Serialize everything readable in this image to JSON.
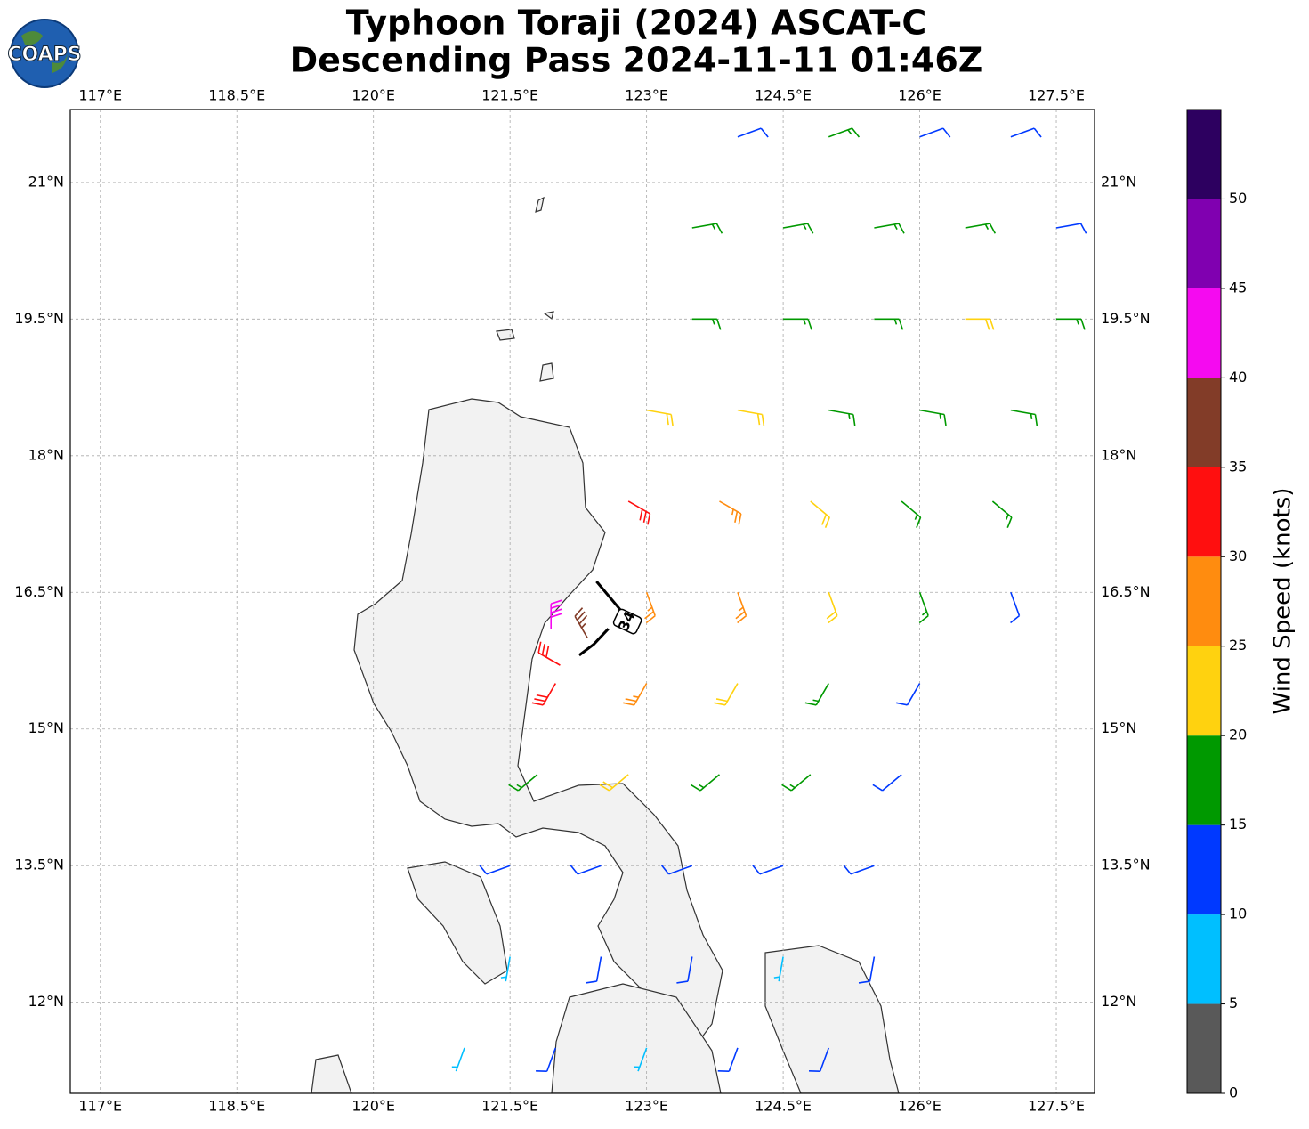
{
  "chart_data": {
    "type": "map",
    "logo": "COAPS",
    "title": [
      "Typhoon Toraji (2024) ASCAT-C",
      "Descending Pass 2024-11-11 01:46Z"
    ],
    "xlim": [
      116.67,
      127.92
    ],
    "ylim": [
      11,
      21.8
    ],
    "xticks": [
      {
        "value": 117,
        "label": "117°E"
      },
      {
        "value": 118.5,
        "label": "118.5°E"
      },
      {
        "value": 120,
        "label": "120°E"
      },
      {
        "value": 121.5,
        "label": "121.5°E"
      },
      {
        "value": 123,
        "label": "123°E"
      },
      {
        "value": 124.5,
        "label": "124.5°E"
      },
      {
        "value": 126,
        "label": "126°E"
      },
      {
        "value": 127.5,
        "label": "127.5°E"
      }
    ],
    "yticks": [
      {
        "value": 12,
        "label": "12°N"
      },
      {
        "value": 13.5,
        "label": "13.5°N"
      },
      {
        "value": 15,
        "label": "15°N"
      },
      {
        "value": 16.5,
        "label": "16.5°N"
      },
      {
        "value": 18,
        "label": "18°N"
      },
      {
        "value": 19.5,
        "label": "19.5°N"
      },
      {
        "value": 21,
        "label": "21°N"
      }
    ],
    "grid": true,
    "colorbar": {
      "label": "Wind Speed (knots)",
      "levels": [
        0,
        5,
        10,
        15,
        20,
        25,
        30,
        35,
        40,
        45,
        50,
        55
      ],
      "colors": [
        "#595959",
        "#00bfff",
        "#0039ff",
        "#009900",
        "#ffd20f",
        "#ff8c0f",
        "#ff0f0f",
        "#823c28",
        "#f50af0",
        "#8000b0",
        "#2d0060"
      ],
      "ticks": [
        0,
        5,
        10,
        15,
        20,
        25,
        30,
        35,
        40,
        45,
        50
      ]
    },
    "isotach": {
      "level": 34,
      "label_at": [
        122.79,
        16.18
      ],
      "segments": [
        [
          [
            122.45,
            16.62
          ],
          [
            122.55,
            16.5
          ],
          [
            122.71,
            16.31
          ]
        ],
        [
          [
            122.26,
            15.81
          ],
          [
            122.42,
            15.93
          ],
          [
            122.58,
            16.1
          ]
        ]
      ]
    },
    "barbs": [
      [
        124,
        21.5,
        12,
        70
      ],
      [
        125,
        21.5,
        15,
        70
      ],
      [
        126,
        21.5,
        13,
        70
      ],
      [
        127,
        21.5,
        12,
        70
      ],
      [
        123.5,
        20.5,
        16,
        80
      ],
      [
        124.5,
        20.5,
        17,
        80
      ],
      [
        125.5,
        20.5,
        16,
        80
      ],
      [
        126.5,
        20.5,
        15,
        80
      ],
      [
        127.5,
        20.5,
        13,
        80
      ],
      [
        123.5,
        19.5,
        18,
        90
      ],
      [
        124.5,
        19.5,
        17,
        90
      ],
      [
        125.5,
        19.5,
        16,
        90
      ],
      [
        126.5,
        19.5,
        21,
        90
      ],
      [
        127.5,
        19.5,
        16,
        90
      ],
      [
        123,
        18.5,
        24,
        100
      ],
      [
        124,
        18.5,
        22,
        100
      ],
      [
        125,
        18.5,
        18,
        100
      ],
      [
        126,
        18.5,
        16,
        100
      ],
      [
        127,
        18.5,
        15,
        100
      ],
      [
        122.8,
        17.5,
        32,
        120
      ],
      [
        123.8,
        17.5,
        27,
        120
      ],
      [
        124.8,
        17.5,
        22,
        130
      ],
      [
        125.8,
        17.5,
        17,
        130
      ],
      [
        126.8,
        17.5,
        16,
        130
      ],
      [
        123,
        16.5,
        29,
        160
      ],
      [
        124,
        16.5,
        26,
        160
      ],
      [
        125,
        16.5,
        20,
        160
      ],
      [
        126,
        16.5,
        16,
        160
      ],
      [
        127,
        16.5,
        14,
        160
      ],
      [
        121.95,
        16.1,
        43,
        0
      ],
      [
        122.35,
        16.0,
        37,
        330
      ],
      [
        122.05,
        15.7,
        33,
        300
      ],
      [
        122,
        15.5,
        31,
        210
      ],
      [
        123,
        15.5,
        26,
        210
      ],
      [
        124,
        15.5,
        22,
        210
      ],
      [
        125,
        15.5,
        16,
        210
      ],
      [
        126,
        15.5,
        13,
        210
      ],
      [
        121.8,
        14.5,
        18,
        230
      ],
      [
        122.8,
        14.5,
        22,
        230
      ],
      [
        123.8,
        14.5,
        16,
        230
      ],
      [
        124.8,
        14.5,
        16,
        230
      ],
      [
        125.8,
        14.5,
        13,
        230
      ],
      [
        121.5,
        13.5,
        12,
        250
      ],
      [
        122.5,
        13.5,
        14,
        250
      ],
      [
        123.5,
        13.5,
        13,
        250
      ],
      [
        124.5,
        13.5,
        12,
        250
      ],
      [
        125.5,
        13.5,
        12,
        250
      ],
      [
        121.5,
        12.5,
        9,
        190
      ],
      [
        122.5,
        12.5,
        14,
        190
      ],
      [
        123.5,
        12.5,
        12,
        190
      ],
      [
        124.5,
        12.5,
        9,
        190
      ],
      [
        125.5,
        12.5,
        12,
        190
      ],
      [
        121,
        11.5,
        8,
        200
      ],
      [
        122,
        11.5,
        10,
        200
      ],
      [
        123,
        11.5,
        7,
        200
      ],
      [
        124,
        11.5,
        12,
        200
      ],
      [
        125,
        11.5,
        12,
        200
      ]
    ]
  }
}
